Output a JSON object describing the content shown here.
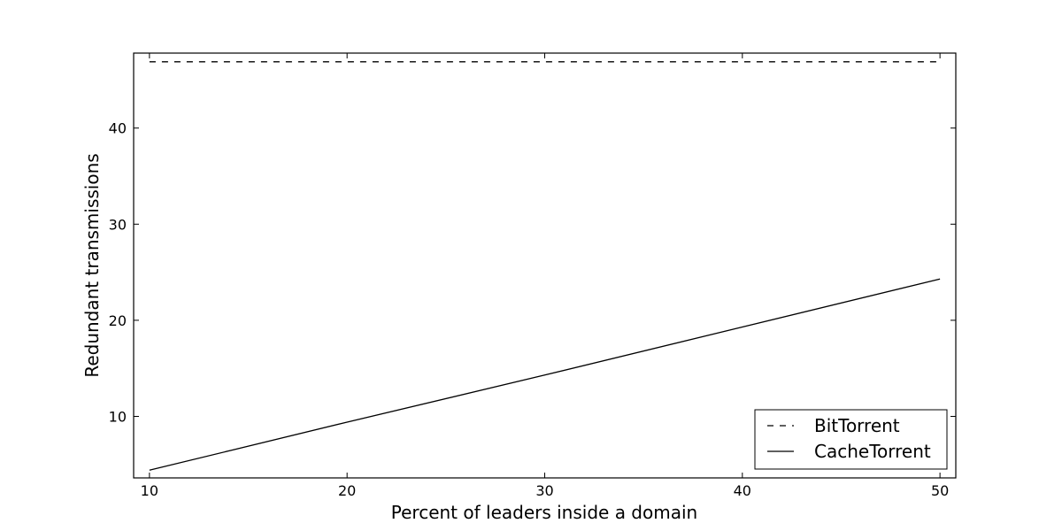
{
  "chart_data": {
    "type": "line",
    "xlabel": "Percent of leaders inside a domain",
    "ylabel": "Redundant transmissions",
    "xlim": [
      9.2,
      50.8
    ],
    "ylim": [
      3.6,
      47.8
    ],
    "xticks": [
      10,
      20,
      30,
      40,
      50
    ],
    "yticks": [
      10,
      20,
      30,
      40
    ],
    "grid": false,
    "legend_position": "lower-right",
    "series": [
      {
        "name": "BitTorrent",
        "style": "dashed",
        "color": "#000000",
        "x": [
          10,
          50
        ],
        "y": [
          46.9,
          46.9
        ]
      },
      {
        "name": "CacheTorrent",
        "style": "solid",
        "color": "#000000",
        "x": [
          10,
          20,
          30,
          40,
          50
        ],
        "y": [
          4.4,
          9.4,
          14.3,
          19.3,
          24.3
        ]
      }
    ]
  }
}
